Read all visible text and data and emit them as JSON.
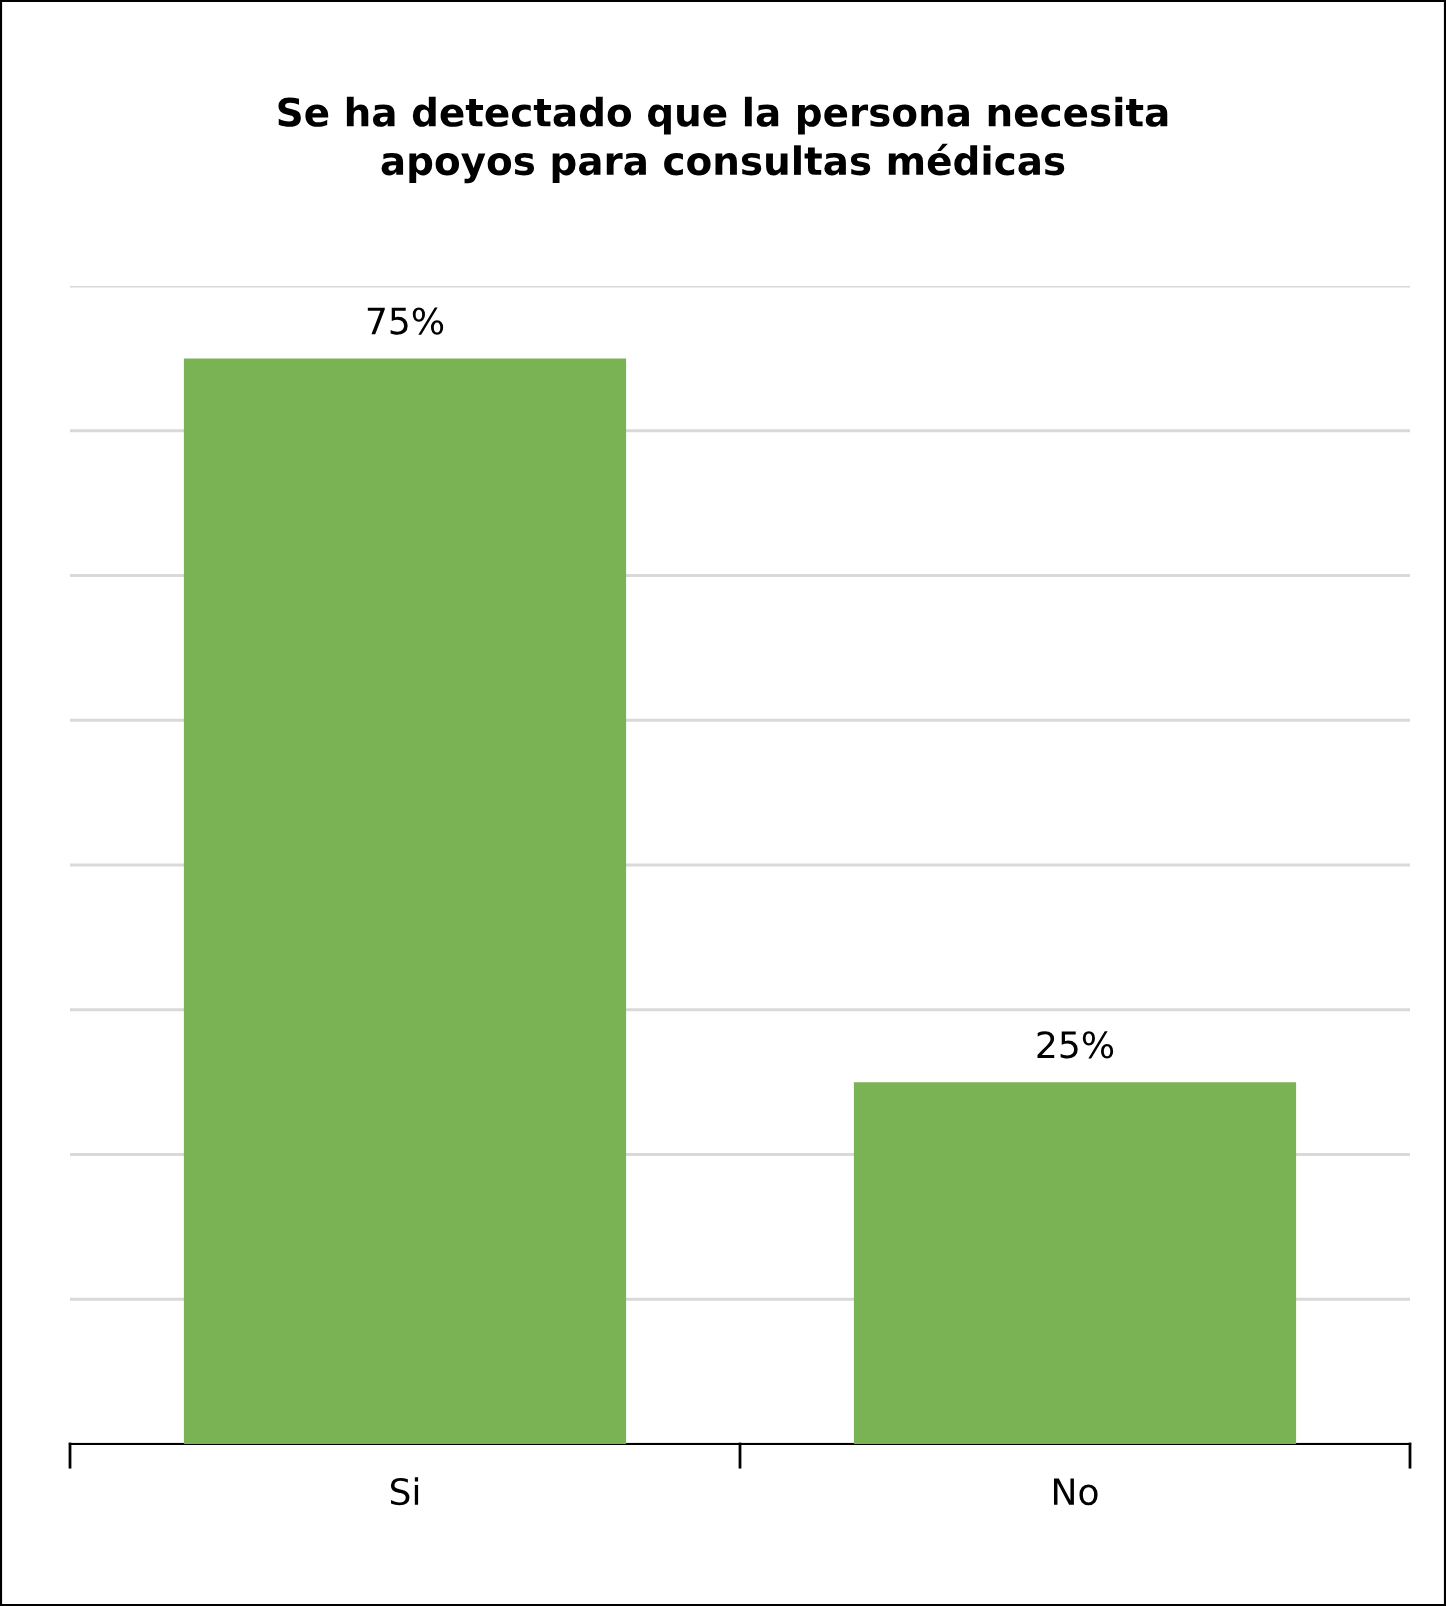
{
  "chart_data": {
    "type": "bar",
    "title": "Se ha detectado que la persona necesita\napoyos para consultas médicas",
    "categories": [
      "Si",
      "No"
    ],
    "values": [
      75,
      25
    ],
    "value_labels": [
      "75%",
      "25%"
    ],
    "color": "#7ab353",
    "ylim": [
      0,
      80
    ],
    "yticks": [
      {
        "value": 0,
        "label": null
      },
      {
        "value": 10,
        "label": null
      },
      {
        "value": 20,
        "label": null
      },
      {
        "value": 30,
        "label": null
      },
      {
        "value": 40,
        "label": null
      },
      {
        "value": 50,
        "label": null
      },
      {
        "value": 60,
        "label": null
      },
      {
        "value": 70,
        "label": null
      },
      {
        "value": 80,
        "label": null
      }
    ],
    "tick_labels": "x",
    "grid": "y",
    "legend": false
  }
}
